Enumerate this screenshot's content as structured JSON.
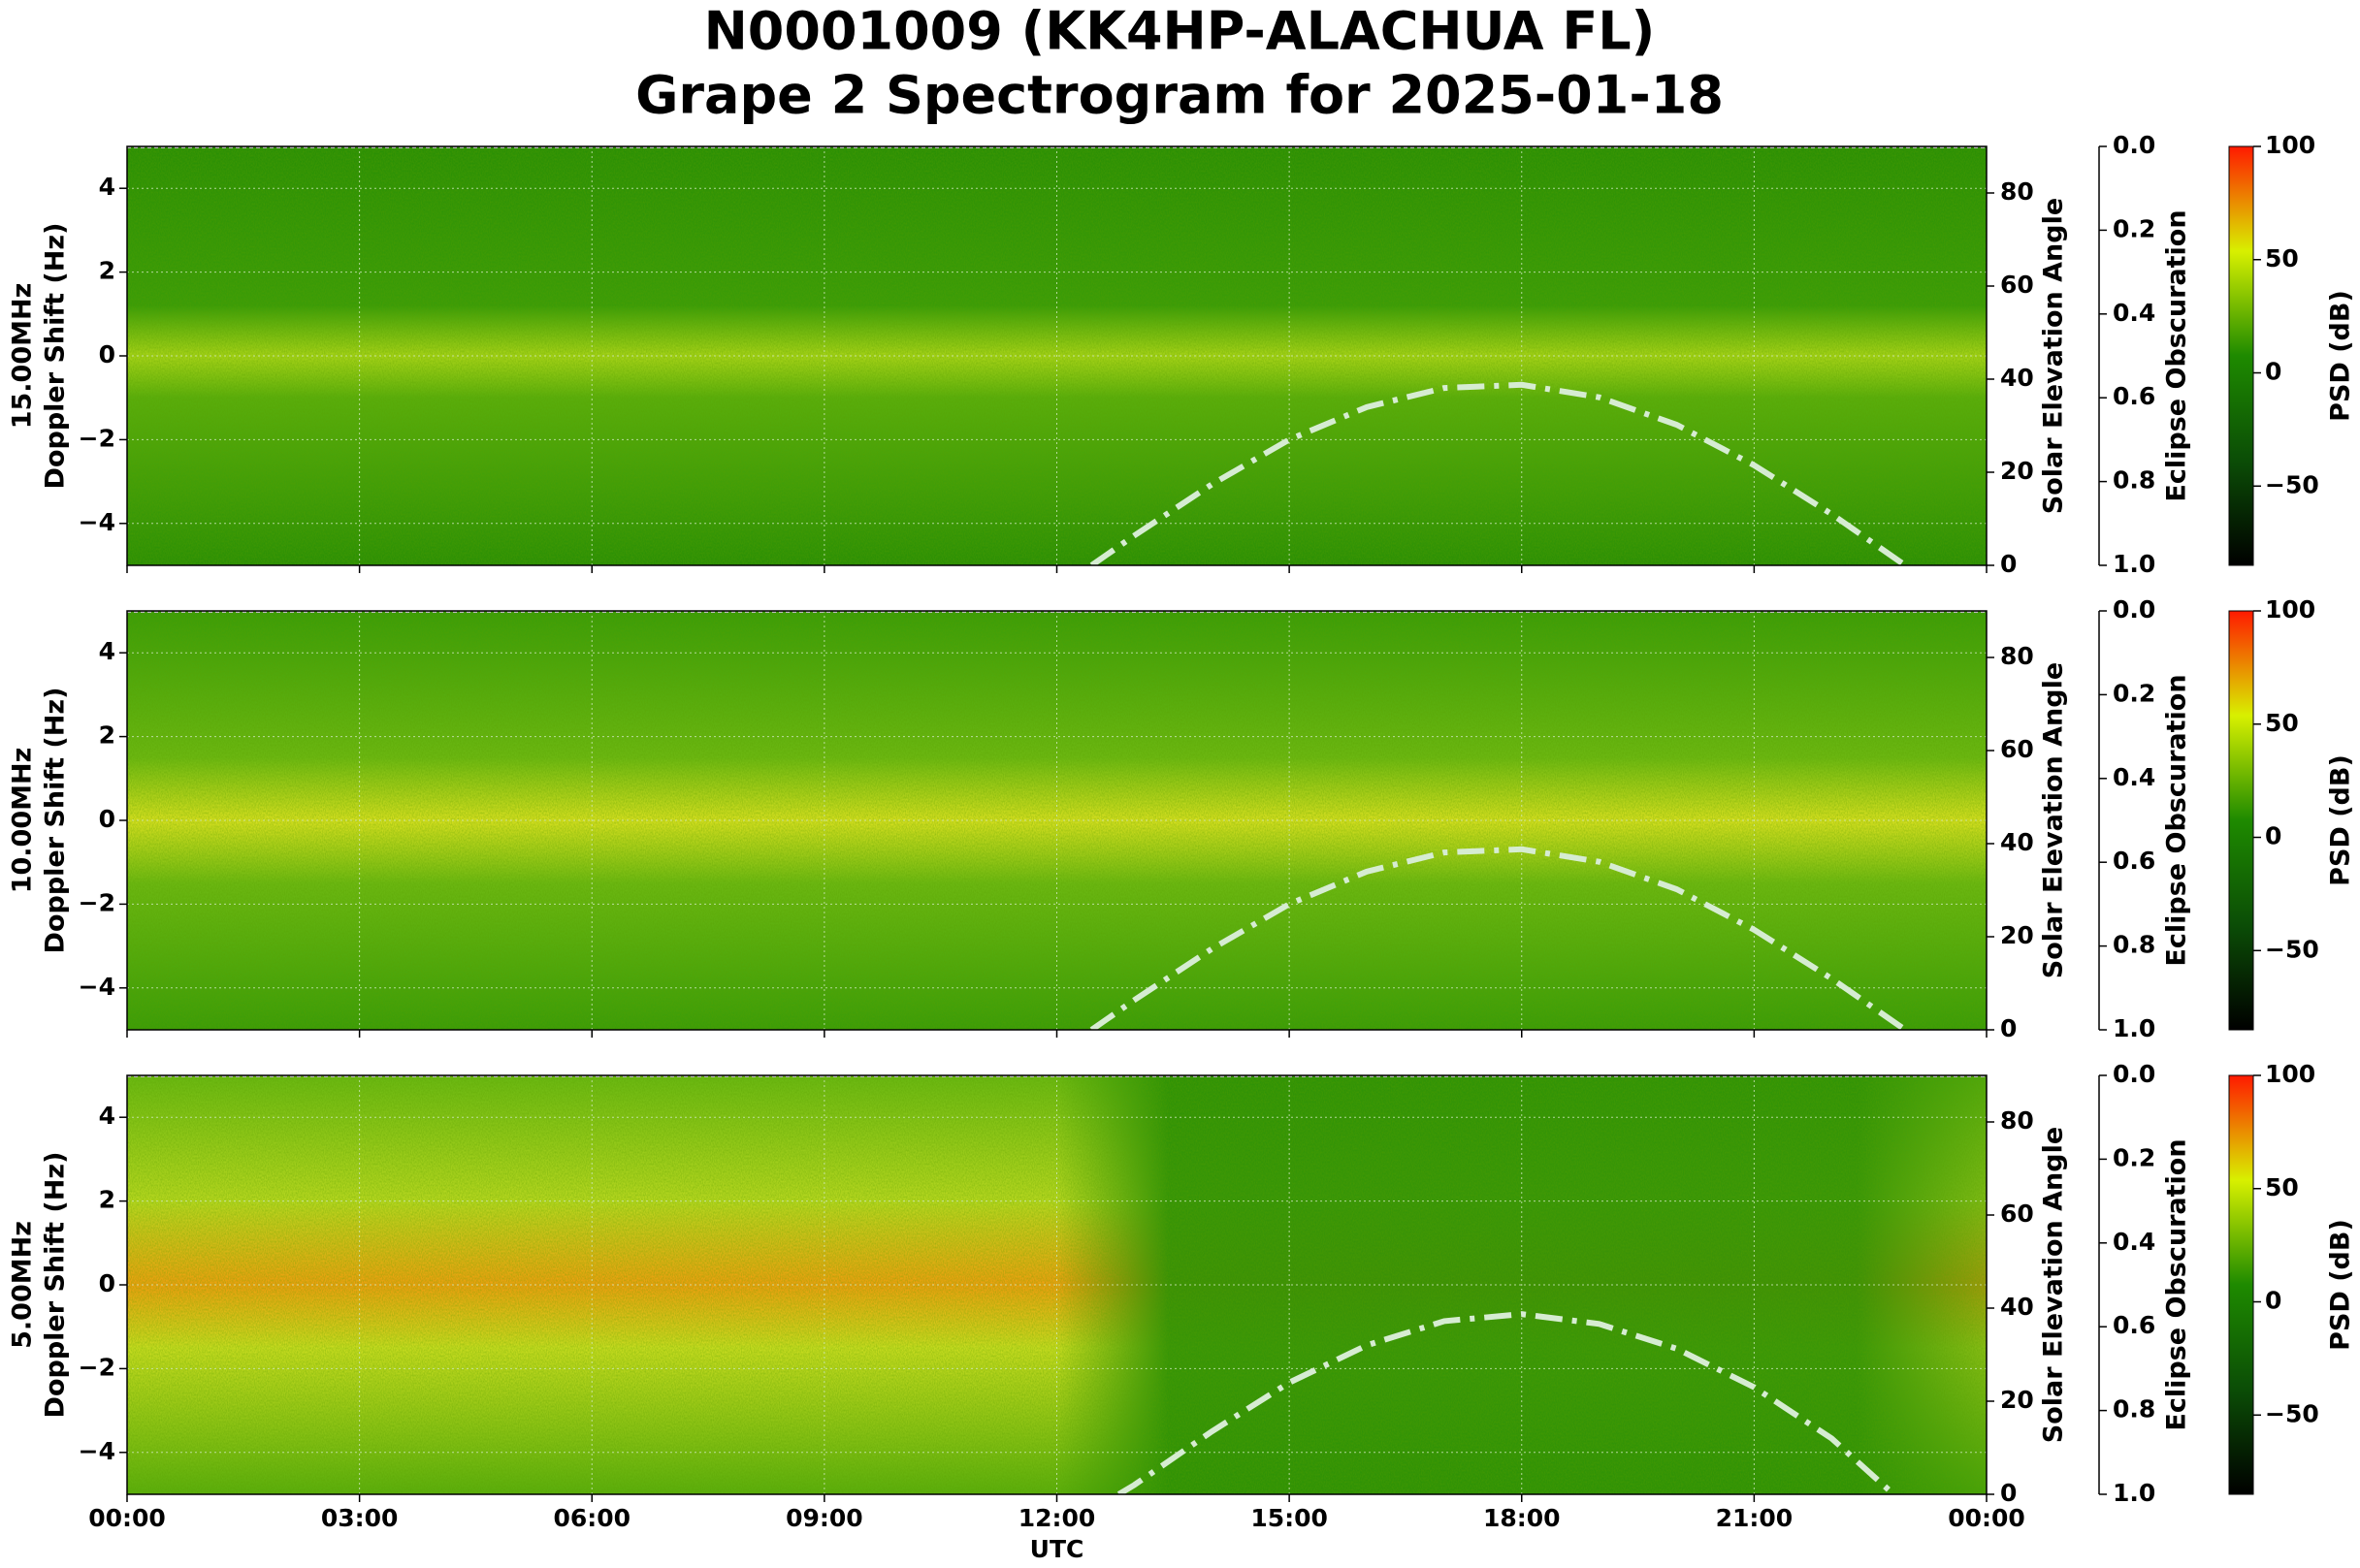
{
  "title": [
    "N0001009 (KK4HP-ALACHUA FL)",
    "Grape 2 Spectrogram for 2025-01-18"
  ],
  "chart_data": [
    {
      "type": "spectrogram",
      "ylabel": [
        "15.00MHz",
        "Doppler Shift (Hz)"
      ],
      "xlim": [
        0,
        24
      ],
      "xticks": [
        0,
        3,
        6,
        9,
        12,
        15,
        18,
        21,
        24
      ],
      "ylim": [
        -5,
        5
      ],
      "yticks": [
        {
          "value": -4,
          "label": "−4"
        },
        {
          "value": -2,
          "label": "−2"
        },
        0,
        2,
        4
      ],
      "grid": true,
      "y2label": "Solar Elevation Angle",
      "y2lim": [
        0,
        90
      ],
      "y2ticks": [
        0,
        20,
        40,
        60,
        80
      ],
      "y3label": "Eclipse Obscuration",
      "y3lim": [
        1,
        0
      ],
      "y3ticks": [
        {
          "value": 0,
          "label": "0.0"
        },
        {
          "value": 0.2,
          "label": "0.2"
        },
        {
          "value": 0.4,
          "label": "0.4"
        },
        {
          "value": 0.6,
          "label": "0.6"
        },
        {
          "value": 0.8,
          "label": "0.8"
        },
        {
          "value": 1,
          "label": "1.0"
        }
      ],
      "colorbar": {
        "label": "PSD (dB)",
        "clim": [
          -85,
          100
        ],
        "ticks": [
          {
            "value": -50,
            "label": "−50"
          },
          0,
          50,
          100
        ],
        "colors": [
          "#000000",
          "#0b4d06",
          "#1e8a00",
          "#d8f000",
          "#ff1a00"
        ]
      },
      "x": [
        12.45,
        13,
        14,
        15,
        16,
        17,
        18,
        19,
        20,
        21,
        22,
        22.95
      ],
      "series": [
        {
          "color": "#d6ecd2",
          "axis": "y2",
          "values": [
            0,
            6.4,
            17.4,
            27.0,
            34.0,
            38.1,
            38.8,
            36.1,
            30.2,
            21.5,
            11.0,
            0
          ]
        }
      ]
    },
    {
      "type": "spectrogram",
      "ylabel": [
        "10.00MHz",
        "Doppler Shift (Hz)"
      ],
      "xlim": [
        0,
        24
      ],
      "xticks": [
        0,
        3,
        6,
        9,
        12,
        15,
        18,
        21,
        24
      ],
      "ylim": [
        -5,
        5
      ],
      "yticks": [
        {
          "value": -4,
          "label": "−4"
        },
        {
          "value": -2,
          "label": "−2"
        },
        0,
        2,
        4
      ],
      "grid": true,
      "y2label": "Solar Elevation Angle",
      "y2lim": [
        0,
        90
      ],
      "y2ticks": [
        0,
        20,
        40,
        60,
        80
      ],
      "y3label": "Eclipse Obscuration",
      "y3lim": [
        1,
        0
      ],
      "y3ticks": [
        {
          "value": 0,
          "label": "0.0"
        },
        {
          "value": 0.2,
          "label": "0.2"
        },
        {
          "value": 0.4,
          "label": "0.4"
        },
        {
          "value": 0.6,
          "label": "0.6"
        },
        {
          "value": 0.8,
          "label": "0.8"
        },
        {
          "value": 1,
          "label": "1.0"
        }
      ],
      "colorbar": {
        "label": "PSD (dB)",
        "clim": [
          -85,
          100
        ],
        "ticks": [
          {
            "value": -50,
            "label": "−50"
          },
          0,
          50,
          100
        ],
        "colors": [
          "#000000",
          "#0b4d06",
          "#1e8a00",
          "#d8f000",
          "#ff1a00"
        ]
      },
      "x": [
        12.45,
        13,
        14,
        15,
        16,
        17,
        18,
        19,
        20,
        21,
        22,
        22.95
      ],
      "series": [
        {
          "color": "#d6ecd2",
          "axis": "y2",
          "values": [
            0,
            6.4,
            17.4,
            27.0,
            34.0,
            38.1,
            38.8,
            36.1,
            30.2,
            21.5,
            11.0,
            0
          ]
        }
      ]
    },
    {
      "type": "spectrogram",
      "ylabel": [
        "5.00MHz",
        "Doppler Shift (Hz)"
      ],
      "xlabel": "UTC",
      "xlim": [
        0,
        24
      ],
      "xticks": [
        {
          "value": 0,
          "label": "00:00"
        },
        {
          "value": 3,
          "label": "03:00"
        },
        {
          "value": 6,
          "label": "06:00"
        },
        {
          "value": 9,
          "label": "09:00"
        },
        {
          "value": 12,
          "label": "12:00"
        },
        {
          "value": 15,
          "label": "15:00"
        },
        {
          "value": 18,
          "label": "18:00"
        },
        {
          "value": 21,
          "label": "21:00"
        },
        {
          "value": 24,
          "label": "00:00"
        }
      ],
      "ylim": [
        -5,
        5
      ],
      "yticks": [
        {
          "value": -4,
          "label": "−4"
        },
        {
          "value": -2,
          "label": "−2"
        },
        0,
        2,
        4
      ],
      "grid": true,
      "y2label": "Solar Elevation Angle",
      "y2lim": [
        0,
        90
      ],
      "y2ticks": [
        0,
        20,
        40,
        60,
        80
      ],
      "y3label": "Eclipse Obscuration",
      "y3lim": [
        1,
        0
      ],
      "y3ticks": [
        {
          "value": 0,
          "label": "0.0"
        },
        {
          "value": 0.2,
          "label": "0.2"
        },
        {
          "value": 0.4,
          "label": "0.4"
        },
        {
          "value": 0.6,
          "label": "0.6"
        },
        {
          "value": 0.8,
          "label": "0.8"
        },
        {
          "value": 1,
          "label": "1.0"
        }
      ],
      "colorbar": {
        "label": "PSD (dB)",
        "clim": [
          -85,
          100
        ],
        "ticks": [
          {
            "value": -50,
            "label": "−50"
          },
          0,
          50,
          100
        ],
        "colors": [
          "#000000",
          "#0b4d06",
          "#1e8a00",
          "#d8f000",
          "#ff1a00"
        ]
      },
      "x": [
        12.8,
        13,
        14,
        15,
        16,
        17,
        18,
        19,
        20,
        21,
        22,
        22.8
      ],
      "series": [
        {
          "color": "#d6ecd2",
          "axis": "y2",
          "values": [
            0,
            2.0,
            13.5,
            24.0,
            32.0,
            37.2,
            38.7,
            36.6,
            31.3,
            23.0,
            12.0,
            0
          ]
        }
      ]
    }
  ]
}
